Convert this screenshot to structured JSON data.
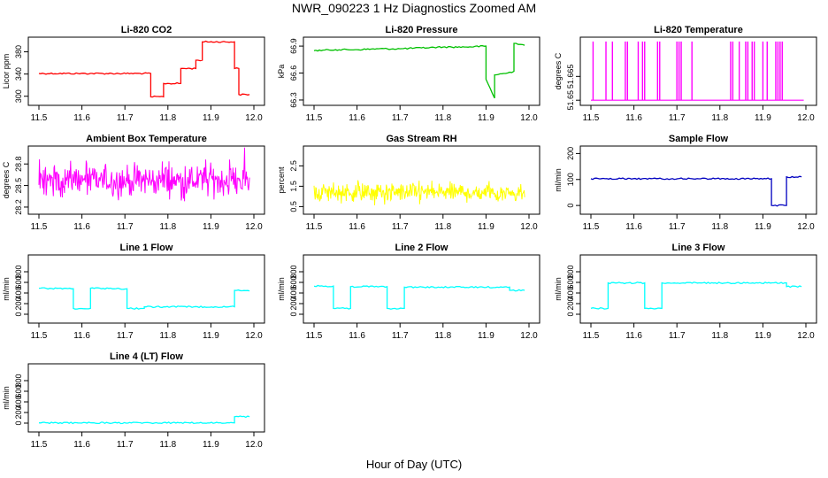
{
  "figure": {
    "title": "NWR_090223  1 Hz Diagnostics Zoomed AM",
    "xlabel": "Hour of Day (UTC)"
  },
  "chart_data": [
    {
      "type": "line",
      "title": "Li-820 CO2",
      "ylabel": "Licor ppm",
      "color": "#ff0000",
      "xlim": [
        11.5,
        12.0
      ],
      "ylim": [
        290,
        400
      ],
      "xticks": [
        11.5,
        11.6,
        11.7,
        11.8,
        11.9,
        12.0
      ],
      "yticks": [
        300,
        340,
        380
      ],
      "x": [
        11.5,
        11.76,
        11.76,
        11.79,
        11.79,
        11.83,
        11.83,
        11.865,
        11.865,
        11.88,
        11.88,
        11.955,
        11.955,
        11.965,
        11.965,
        11.99
      ],
      "y": [
        341,
        341,
        299,
        299,
        323,
        323,
        350,
        350,
        365,
        365,
        398,
        398,
        350,
        350,
        303,
        303
      ]
    },
    {
      "type": "line",
      "title": "Li-820 Pressure",
      "ylabel": "kPa",
      "color": "#00c000",
      "xlim": [
        11.5,
        12.0
      ],
      "ylim": [
        66.28,
        66.96
      ],
      "xticks": [
        11.5,
        11.6,
        11.7,
        11.8,
        11.9,
        12.0
      ],
      "yticks": [
        66.3,
        66.6,
        66.9
      ],
      "x": [
        11.5,
        11.55,
        11.6,
        11.65,
        11.7,
        11.75,
        11.8,
        11.85,
        11.9,
        11.9,
        11.92,
        11.92,
        11.95,
        11.965,
        11.965,
        11.97,
        11.99
      ],
      "y": [
        66.85,
        66.86,
        66.86,
        66.87,
        66.87,
        66.88,
        66.89,
        66.89,
        66.9,
        66.53,
        66.32,
        66.58,
        66.6,
        66.62,
        66.93,
        66.93,
        66.91
      ]
    },
    {
      "type": "line",
      "title": "Li-820 Temperature",
      "ylabel": "degrees C",
      "color": "#ff00ff",
      "xlim": [
        11.5,
        12.0
      ],
      "ylim": [
        51.649,
        51.6875
      ],
      "xticks": [
        11.5,
        11.6,
        11.7,
        11.8,
        11.9,
        12.0
      ],
      "yticks": [
        51.65,
        51.665
      ],
      "baseline": 51.65,
      "spike_top": 51.687,
      "spikes": [
        11.505,
        11.535,
        11.55,
        11.58,
        11.585,
        11.61,
        11.62,
        11.625,
        11.655,
        11.66,
        11.7,
        11.705,
        11.71,
        11.735,
        11.825,
        11.83,
        11.845,
        11.86,
        11.865,
        11.875,
        11.88,
        11.9,
        11.91,
        11.93,
        11.935,
        11.94,
        11.945
      ]
    },
    {
      "type": "line",
      "title": "Ambient Box Temperature",
      "ylabel": "degrees C",
      "color": "#ff00ff",
      "xlim": [
        11.5,
        12.0
      ],
      "ylim": [
        28.15,
        29.0
      ],
      "xticks": [
        11.5,
        11.6,
        11.7,
        11.8,
        11.9,
        12.0
      ],
      "yticks": [
        28.2,
        28.5,
        28.8
      ],
      "noise": {
        "mean": 28.57,
        "amplitude": 0.34,
        "n": 380
      }
    },
    {
      "type": "line",
      "title": "Gas Stream RH",
      "ylabel": "percent",
      "color": "#ffff00",
      "xlim": [
        11.5,
        12.0
      ],
      "ylim": [
        0.3,
        3.3
      ],
      "xticks": [
        11.5,
        11.6,
        11.7,
        11.8,
        11.9,
        12.0
      ],
      "yticks": [
        0.5,
        1.5,
        2.5
      ],
      "noise": {
        "mean": 1.2,
        "amplitude": 0.75,
        "n": 380
      }
    },
    {
      "type": "line",
      "title": "Sample Flow",
      "ylabel": "ml/min",
      "color": "#0000c0",
      "xlim": [
        11.5,
        12.0
      ],
      "ylim": [
        -20,
        215
      ],
      "xticks": [
        11.5,
        11.6,
        11.7,
        11.8,
        11.9,
        12.0
      ],
      "yticks": [
        0,
        100,
        200
      ],
      "x": [
        11.5,
        11.92,
        11.92,
        11.955,
        11.955,
        11.99
      ],
      "y": [
        103,
        103,
        0,
        0,
        110,
        110
      ]
    },
    {
      "type": "line",
      "title": "Line 1 Flow",
      "ylabel": "ml/min",
      "color": "#00ffff",
      "xlim": [
        11.5,
        12.0
      ],
      "ylim": [
        -100,
        1050
      ],
      "xticks": [
        11.5,
        11.6,
        11.7,
        11.8,
        11.9,
        12.0
      ],
      "yticks": [
        0,
        200,
        400,
        600,
        800
      ],
      "x": [
        11.5,
        11.58,
        11.58,
        11.62,
        11.62,
        11.705,
        11.705,
        11.745,
        11.745,
        11.955,
        11.955,
        11.99
      ],
      "y": [
        490,
        480,
        110,
        110,
        490,
        480,
        110,
        110,
        140,
        140,
        450,
        440
      ]
    },
    {
      "type": "line",
      "title": "Line 2 Flow",
      "ylabel": "ml/min",
      "color": "#00ffff",
      "xlim": [
        11.5,
        12.0
      ],
      "ylim": [
        -100,
        1050
      ],
      "xticks": [
        11.5,
        11.6,
        11.7,
        11.8,
        11.9,
        12.0
      ],
      "yticks": [
        0,
        200,
        400,
        600,
        800
      ],
      "x": [
        11.5,
        11.545,
        11.545,
        11.585,
        11.585,
        11.67,
        11.67,
        11.71,
        11.71,
        11.955,
        11.955,
        11.99
      ],
      "y": [
        530,
        530,
        110,
        110,
        520,
        520,
        110,
        110,
        510,
        510,
        450,
        450
      ]
    },
    {
      "type": "line",
      "title": "Line 3 Flow",
      "ylabel": "ml/min",
      "color": "#00ffff",
      "xlim": [
        11.5,
        12.0
      ],
      "ylim": [
        -100,
        1050
      ],
      "xticks": [
        11.5,
        11.6,
        11.7,
        11.8,
        11.9,
        12.0
      ],
      "yticks": [
        0,
        200,
        400,
        600,
        800
      ],
      "x": [
        11.5,
        11.54,
        11.54,
        11.625,
        11.625,
        11.665,
        11.665,
        11.955,
        11.955,
        11.99
      ],
      "y": [
        110,
        110,
        590,
        590,
        110,
        110,
        590,
        590,
        520,
        520
      ]
    },
    {
      "type": "line",
      "title": "Line 4 (LT) Flow",
      "ylabel": "ml/min",
      "color": "#00ffff",
      "xlim": [
        11.5,
        12.0
      ],
      "ylim": [
        -100,
        1050
      ],
      "xticks": [
        11.5,
        11.6,
        11.7,
        11.8,
        11.9,
        12.0
      ],
      "yticks": [
        0,
        200,
        400,
        600,
        800
      ],
      "x": [
        11.5,
        11.955,
        11.955,
        11.99
      ],
      "y": [
        5,
        5,
        120,
        120
      ]
    }
  ]
}
